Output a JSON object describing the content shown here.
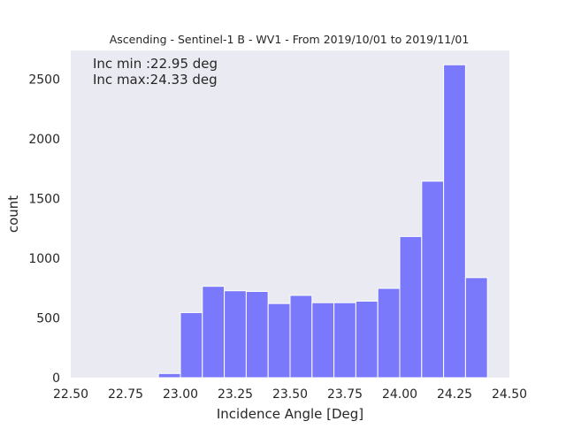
{
  "chart_data": {
    "type": "bar",
    "title": "Ascending - Sentinel-1 B - WV1 - From 2019/10/01 to 2019/11/01",
    "xlabel": "Incidence Angle [Deg]",
    "ylabel": "count",
    "xlim": [
      22.5,
      24.5
    ],
    "ylim": [
      0,
      2740
    ],
    "xticks": [
      "22.50",
      "22.75",
      "23.00",
      "23.25",
      "23.50",
      "23.75",
      "24.00",
      "24.25",
      "24.50"
    ],
    "xtick_values": [
      22.5,
      22.75,
      23.0,
      23.25,
      23.5,
      23.75,
      24.0,
      24.25,
      24.5
    ],
    "yticks": [
      "0",
      "500",
      "1000",
      "1500",
      "2000",
      "2500"
    ],
    "ytick_values": [
      0,
      500,
      1000,
      1500,
      2000,
      2500
    ],
    "bin_edges": [
      22.9,
      23.0,
      23.1,
      23.2,
      23.3,
      23.4,
      23.5,
      23.6,
      23.7,
      23.8,
      23.9,
      24.0,
      24.1,
      24.2,
      24.3,
      24.4
    ],
    "values": [
      35,
      545,
      765,
      728,
      722,
      621,
      689,
      628,
      628,
      641,
      748,
      1182,
      1645,
      2620,
      838
    ],
    "grid": false,
    "colors": {
      "bar": "#7a79fc",
      "bar_edge": "#ffffff",
      "background": "#eaeaf2"
    },
    "annotations": [
      "Inc min :22.95 deg",
      "Inc max:24.33 deg"
    ]
  }
}
